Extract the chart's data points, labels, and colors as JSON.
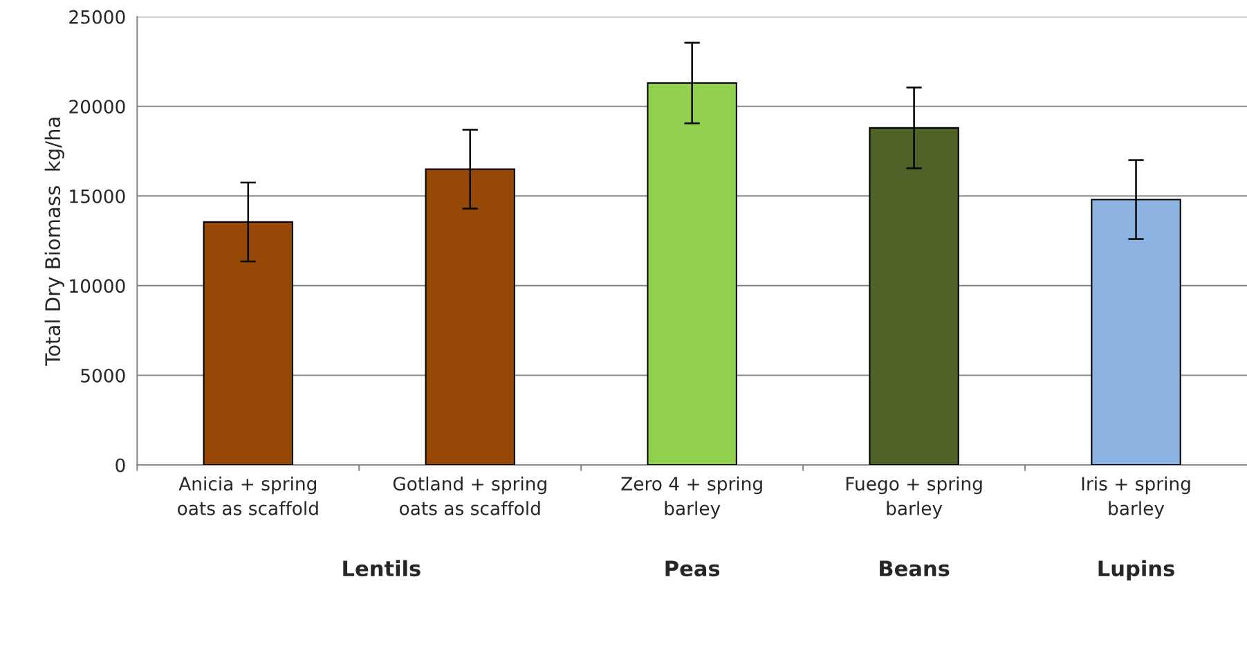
{
  "chart_data": {
    "type": "bar",
    "ylabel": "Total Dry Biomass  kg/ha",
    "categories": [
      "Anicia + spring\noats as scaffold",
      "Gotland + spring\noats as scaffold",
      "Zero 4 + spring\nbarley",
      "Fuego + spring\nbarley",
      "Iris + spring\nbarley"
    ],
    "values": [
      13550,
      16500,
      21300,
      18800,
      14800
    ],
    "errors": [
      2200,
      2200,
      2250,
      2250,
      2200
    ],
    "colors": [
      "#974706",
      "#974706",
      "#92d050",
      "#4f6228",
      "#8db3e2"
    ],
    "ylim": [
      0,
      25000
    ],
    "yticks": [
      0,
      5000,
      10000,
      15000,
      20000,
      25000
    ],
    "grid": "y",
    "annotations": [
      "Lentils",
      "Peas",
      "Beans",
      "Lupins"
    ]
  }
}
